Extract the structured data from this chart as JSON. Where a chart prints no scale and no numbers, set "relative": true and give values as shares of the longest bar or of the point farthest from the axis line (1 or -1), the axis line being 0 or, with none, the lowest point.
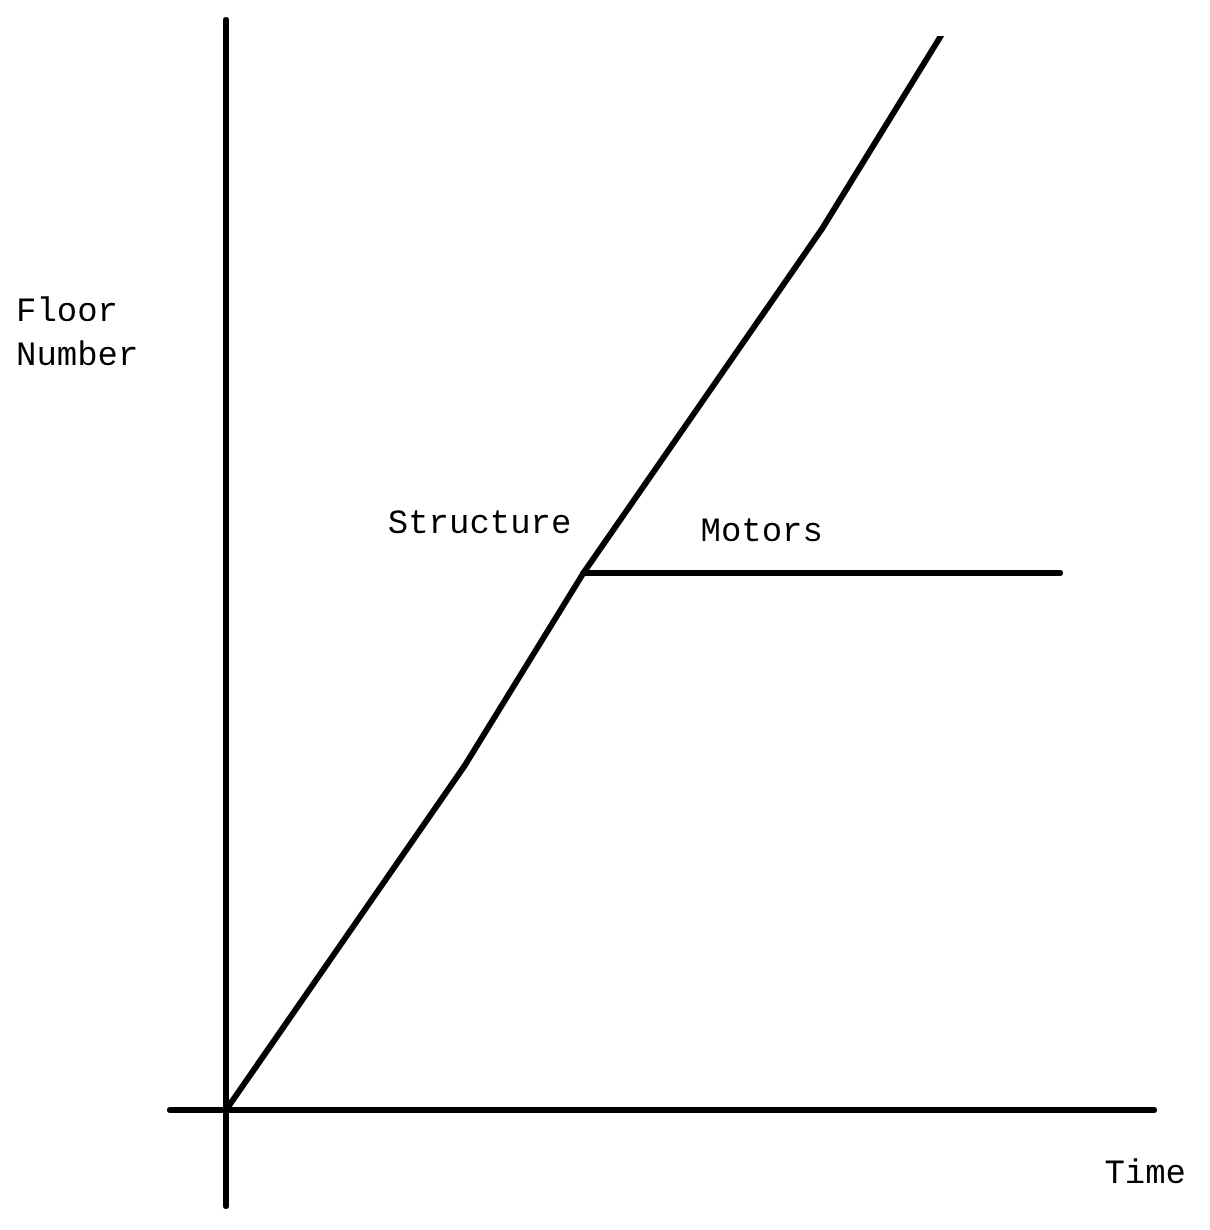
{
  "chart_data": {
    "type": "line",
    "relative": true,
    "xlabel": "Time",
    "ylabel": "Floor Number",
    "categories": [
      null,
      null,
      null,
      null,
      null,
      null,
      null,
      null
    ],
    "series": [
      {
        "name": "Structure",
        "color": "#000000",
        "values": [
          0,
          0.16,
          0.32,
          0.5,
          0.66,
          0.82,
          1,
          null
        ]
      },
      {
        "name": "Motors",
        "color": "#000000",
        "values": [
          null,
          null,
          null,
          0.5,
          0.5,
          0.5,
          0.5,
          0.5
        ]
      }
    ],
    "legend": false,
    "marker": "none",
    "line_style": "solid"
  }
}
